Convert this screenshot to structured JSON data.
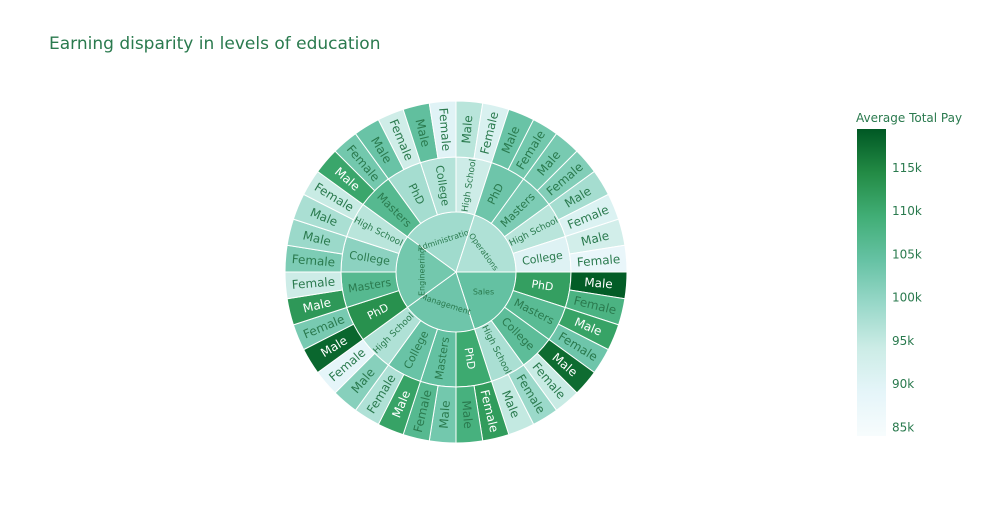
{
  "chart_data": {
    "type": "sunburst",
    "title": "Earning disparity in levels of education",
    "colorbar": {
      "title": "Average Total Pay",
      "ticks": [
        "85k",
        "90k",
        "95k",
        "100k",
        "105k",
        "110k",
        "115k"
      ],
      "tick_values": [
        85000,
        90000,
        95000,
        100000,
        105000,
        110000,
        115000
      ],
      "range": [
        84000,
        119500
      ],
      "colors": [
        "#f7fcfd",
        "#e5f5f9",
        "#ccece6",
        "#99d8c9",
        "#66c2a4",
        "#41ae76",
        "#238b45",
        "#005824"
      ]
    },
    "departments": [
      {
        "name": "Sales",
        "value": 104500,
        "levels": [
          {
            "name": "PhD",
            "value": 111500,
            "genders": [
              {
                "name": "Male",
                "value": 119000
              },
              {
                "name": "Female",
                "value": 108000
              }
            ]
          },
          {
            "name": "Masters",
            "value": 106000,
            "genders": [
              {
                "name": "Male",
                "value": 111000
              },
              {
                "name": "Female",
                "value": 103500
              }
            ]
          },
          {
            "name": "College",
            "value": 105500,
            "genders": [
              {
                "name": "Male",
                "value": 117500
              },
              {
                "name": "Female",
                "value": 94500
              }
            ]
          },
          {
            "name": "High School",
            "value": 97500,
            "genders": [
              {
                "name": "Female",
                "value": 99000
              },
              {
                "name": "Male",
                "value": 95000
              }
            ]
          }
        ]
      },
      {
        "name": "Management",
        "value": 103500,
        "levels": [
          {
            "name": "PhD",
            "value": 110000,
            "genders": [
              {
                "name": "Female",
                "value": 112000
              },
              {
                "name": "Male",
                "value": 108500
              }
            ]
          },
          {
            "name": "Masters",
            "value": 104500,
            "genders": [
              {
                "name": "Male",
                "value": 103000
              },
              {
                "name": "Female",
                "value": 106500
              }
            ]
          },
          {
            "name": "College",
            "value": 104000,
            "genders": [
              {
                "name": "Male",
                "value": 111000
              },
              {
                "name": "Female",
                "value": 97000
              }
            ]
          },
          {
            "name": "High School",
            "value": 97000,
            "genders": [
              {
                "name": "Male",
                "value": 101000
              },
              {
                "name": "Female",
                "value": 89000
              }
            ]
          }
        ]
      },
      {
        "name": "Engineering",
        "value": 103000,
        "levels": [
          {
            "name": "PhD",
            "value": 113500,
            "genders": [
              {
                "name": "Male",
                "value": 118000
              },
              {
                "name": "Female",
                "value": 102500
              }
            ]
          },
          {
            "name": "Masters",
            "value": 106500,
            "genders": [
              {
                "name": "Male",
                "value": 112500
              },
              {
                "name": "Female",
                "value": 94000
              }
            ]
          },
          {
            "name": "College",
            "value": 100500,
            "genders": [
              {
                "name": "Female",
                "value": 102000
              },
              {
                "name": "Male",
                "value": 99000
              }
            ]
          },
          {
            "name": "High School",
            "value": 96000,
            "genders": [
              {
                "name": "Male",
                "value": 97500
              },
              {
                "name": "Female",
                "value": 94500
              }
            ]
          }
        ]
      },
      {
        "name": "Administration",
        "value": 98500,
        "levels": [
          {
            "name": "Masters",
            "value": 106500,
            "genders": [
              {
                "name": "Male",
                "value": 110500
              },
              {
                "name": "Female",
                "value": 103000
              }
            ]
          },
          {
            "name": "PhD",
            "value": 98000,
            "genders": [
              {
                "name": "Male",
                "value": 104000
              },
              {
                "name": "Female",
                "value": 93500
              }
            ]
          },
          {
            "name": "College",
            "value": 96500,
            "genders": [
              {
                "name": "Male",
                "value": 105000
              },
              {
                "name": "Female",
                "value": 90000
              }
            ]
          },
          {
            "name": "High School",
            "value": 94000,
            "genders": [
              {
                "name": "Male",
                "value": 96000
              },
              {
                "name": "Female",
                "value": 91500
              }
            ]
          }
        ]
      },
      {
        "name": "Operations",
        "value": 97000,
        "levels": [
          {
            "name": "PhD",
            "value": 103500,
            "genders": [
              {
                "name": "Male",
                "value": 104000
              },
              {
                "name": "Female",
                "value": 103000
              }
            ]
          },
          {
            "name": "Masters",
            "value": 102000,
            "genders": [
              {
                "name": "Male",
                "value": 102500
              },
              {
                "name": "Female",
                "value": 101500
              }
            ]
          },
          {
            "name": "High School",
            "value": 96000,
            "genders": [
              {
                "name": "Male",
                "value": 98000
              },
              {
                "name": "Female",
                "value": 91000
              }
            ]
          },
          {
            "name": "College",
            "value": 90500,
            "genders": [
              {
                "name": "Male",
                "value": 93000
              },
              {
                "name": "Female",
                "value": 88000
              }
            ]
          }
        ]
      }
    ]
  }
}
